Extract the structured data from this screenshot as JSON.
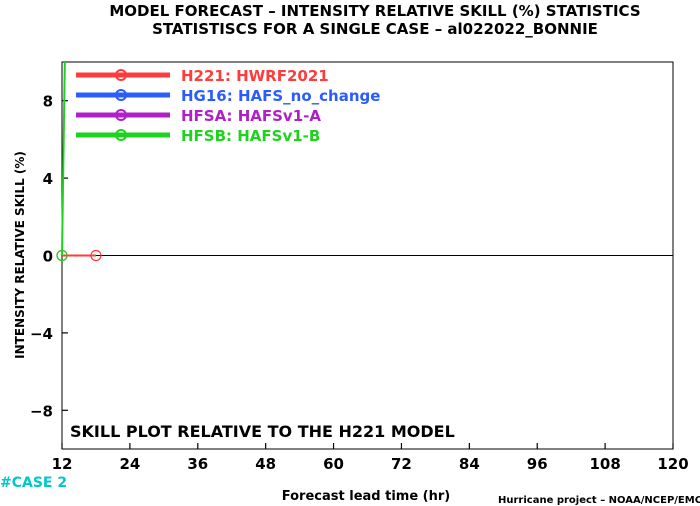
{
  "title_line1": "MODEL FORECAST – INTENSITY RELATIVE SKILL (%) STATISTICS",
  "title_line2": "STATISTISCS FOR A SINGLE CASE – al022022_BONNIE",
  "annotation": "SKILL PLOT RELATIVE TO THE H221 MODEL",
  "case_label": "#CASE 2",
  "footer": "Hurricane project – NOAA/NCEP/EMC",
  "chart_data": {
    "type": "line",
    "xlabel": "Forecast lead time (hr)",
    "ylabel": "INTENSITY RELATIVE SKILL (%)",
    "xlim": [
      12,
      120
    ],
    "ylim": [
      -10,
      10
    ],
    "xticks": [
      12,
      24,
      36,
      48,
      60,
      72,
      84,
      96,
      108,
      120
    ],
    "yticks": [
      -8,
      -4,
      0,
      4,
      8
    ],
    "ytick_labels": [
      "−8",
      "−4",
      "0",
      "4",
      "8"
    ],
    "grid": false,
    "zero_line": true,
    "legend_position": "top-left",
    "series": [
      {
        "name": "H221: HWRF2021",
        "color": "#ff3b3b",
        "x": [
          12,
          18
        ],
        "y": [
          0,
          0
        ]
      },
      {
        "name": "HG16: HAFS_no_change",
        "color": "#2a5cff",
        "x": [],
        "y": []
      },
      {
        "name": "HFSA: HAFSv1-A",
        "color": "#b020c8",
        "x": [],
        "y": []
      },
      {
        "name": "HFSB: HAFSv1-B",
        "color": "#1ed31e",
        "x": [
          12,
          12.5
        ],
        "y": [
          0,
          10
        ]
      }
    ]
  }
}
